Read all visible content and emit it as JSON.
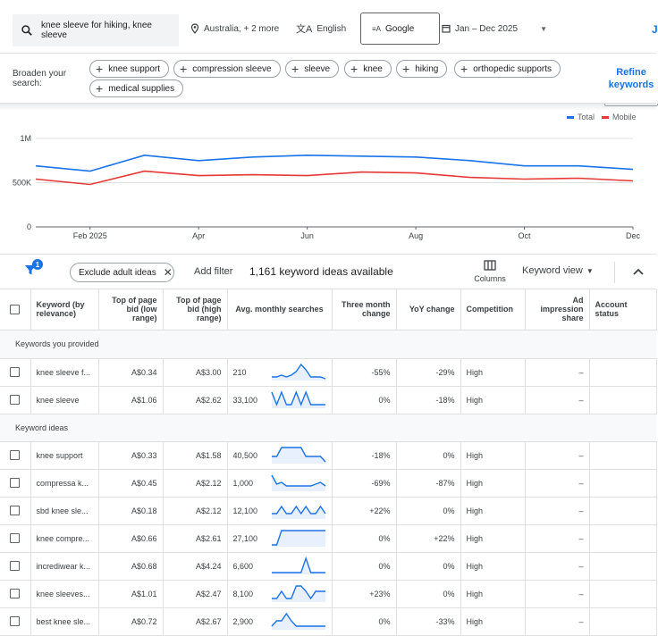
{
  "search": {
    "query": "knee sleeve for hiking, knee sleeve",
    "location": "Australia, + 2 more",
    "language": "English",
    "network": "Google",
    "date_range": "Jan – Dec 2025"
  },
  "broaden": {
    "label": "Broaden your search:",
    "chips": [
      "knee support",
      "compression sleeve",
      "sleeve",
      "knee",
      "hiking",
      "orthopedic supports",
      "medical supplies"
    ],
    "refine_label": "Refine keywords"
  },
  "chart_data": {
    "type": "line",
    "categories": [
      "Jan 2025",
      "Feb 2025",
      "Mar 2025",
      "Apr 2025",
      "May 2025",
      "Jun 2025",
      "Jul 2025",
      "Aug 2025",
      "Sep 2025",
      "Oct 2025",
      "Nov 2025",
      "Dec 2025"
    ],
    "tick_labels": [
      "Feb 2025",
      "Apr",
      "Jun",
      "Aug",
      "Oct",
      "Dec"
    ],
    "tick_index": [
      1,
      3,
      5,
      7,
      9,
      11
    ],
    "y_ticks": [
      "0",
      "500K",
      "1M"
    ],
    "y_tick_values": [
      0,
      500000,
      1000000
    ],
    "ylim": [
      0,
      1000000
    ],
    "series": [
      {
        "name": "Total",
        "color": "#1a73e8",
        "values": [
          690000,
          630000,
          810000,
          750000,
          790000,
          810000,
          800000,
          790000,
          750000,
          690000,
          690000,
          650000
        ]
      },
      {
        "name": "Mobile",
        "color": "#e53935",
        "values": [
          540000,
          480000,
          630000,
          580000,
          590000,
          580000,
          620000,
          610000,
          560000,
          540000,
          550000,
          520000
        ]
      }
    ],
    "grid": true,
    "legend": "top-right"
  },
  "toolbar": {
    "filter_badge": "1",
    "exclude_chip": "Exclude adult ideas",
    "add_filter": "Add filter",
    "ideas_count": "1,161 keyword ideas available",
    "columns": "Columns",
    "keyword_view": "Keyword view"
  },
  "table": {
    "headers": [
      "Keyword (by relevance)",
      "Top of page bid (low range)",
      "Top of page bid (high range)",
      "Avg. monthly searches",
      "Three month change",
      "YoY change",
      "Competition",
      "Ad impression share",
      "Account status"
    ],
    "group_provided": "Keywords you provided",
    "group_ideas": "Keyword ideas",
    "provided": [
      {
        "keyword": "knee sleeve f...",
        "low": "A$0.34",
        "high": "A$3.00",
        "searches": "210",
        "three_month": "-55%",
        "yoy": "-29%",
        "competition": "High",
        "share": "–",
        "spark": [
          2,
          2,
          3,
          2,
          3,
          5,
          9,
          6,
          2,
          2,
          2,
          1
        ]
      },
      {
        "keyword": "knee sleeve",
        "low": "A$1.06",
        "high": "A$2.62",
        "searches": "33,100",
        "three_month": "0%",
        "yoy": "-18%",
        "competition": "High",
        "share": "–",
        "spark": [
          9,
          2,
          9,
          2,
          2,
          9,
          2,
          9,
          2,
          2,
          2,
          2
        ]
      }
    ],
    "ideas": [
      {
        "keyword": "knee support",
        "low": "A$0.33",
        "high": "A$1.58",
        "searches": "40,500",
        "three_month": "-18%",
        "yoy": "0%",
        "competition": "High",
        "share": "–",
        "spark": [
          4,
          4,
          9,
          9,
          9,
          9,
          9,
          4,
          4,
          4,
          4,
          1
        ]
      },
      {
        "keyword": "compressa k...",
        "low": "A$0.45",
        "high": "A$2.12",
        "searches": "1,000",
        "three_month": "-69%",
        "yoy": "-87%",
        "competition": "High",
        "share": "–",
        "spark": [
          9,
          4,
          5,
          3,
          3,
          3,
          3,
          3,
          3,
          4,
          5,
          3
        ]
      },
      {
        "keyword": "sbd knee sle...",
        "low": "A$0.18",
        "high": "A$2.12",
        "searches": "12,100",
        "three_month": "+22%",
        "yoy": "0%",
        "competition": "High",
        "share": "–",
        "spark": [
          3,
          3,
          7,
          3,
          3,
          7,
          3,
          7,
          3,
          3,
          7,
          3
        ]
      },
      {
        "keyword": "knee compre...",
        "low": "A$0.66",
        "high": "A$2.61",
        "searches": "27,100",
        "three_month": "0%",
        "yoy": "+22%",
        "competition": "High",
        "share": "–",
        "spark": [
          1,
          1,
          9,
          9,
          9,
          9,
          9,
          9,
          9,
          9,
          9,
          9
        ]
      },
      {
        "keyword": "incrediwear k...",
        "low": "A$0.68",
        "high": "A$4.24",
        "searches": "6,600",
        "three_month": "0%",
        "yoy": "0%",
        "competition": "High",
        "share": "–",
        "spark": [
          1,
          1,
          1,
          1,
          1,
          1,
          1,
          9,
          1,
          1,
          1,
          1
        ]
      },
      {
        "keyword": "knee sleeves...",
        "low": "A$1.01",
        "high": "A$2.47",
        "searches": "8,100",
        "three_month": "+23%",
        "yoy": "0%",
        "competition": "High",
        "share": "–",
        "spark": [
          2,
          2,
          6,
          2,
          2,
          9,
          9,
          6,
          2,
          6,
          6,
          6
        ]
      },
      {
        "keyword": "best knee sle...",
        "low": "A$0.72",
        "high": "A$2.67",
        "searches": "2,900",
        "three_month": "0%",
        "yoy": "-33%",
        "competition": "High",
        "share": "–",
        "spark": [
          2,
          5,
          5,
          9,
          5,
          2,
          2,
          2,
          2,
          2,
          2,
          2
        ]
      }
    ]
  }
}
